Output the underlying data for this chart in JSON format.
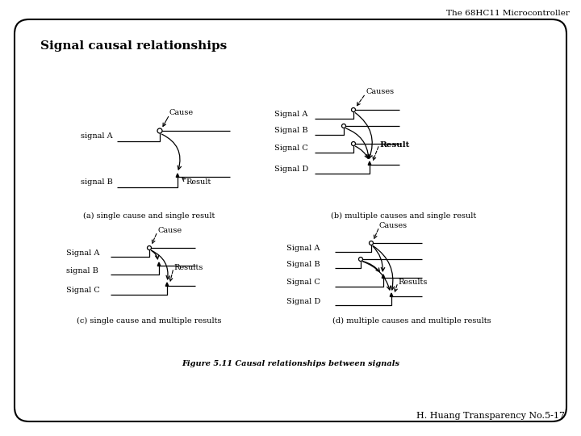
{
  "title": "The 68HC11 Microcontroller",
  "slide_title": "Signal causal relationships",
  "footer": "H. Huang Transparency No.5-17",
  "figure_caption": "Figure 5.11 Causal relationships between signals",
  "background_color": "#ffffff",
  "border_color": "#000000",
  "text_color": "#000000",
  "sub_captions": [
    "(a) single cause and single result",
    "(b) multiple causes and single result",
    "(c) single cause and multiple results",
    "(d) multiple causes and multiple results"
  ]
}
